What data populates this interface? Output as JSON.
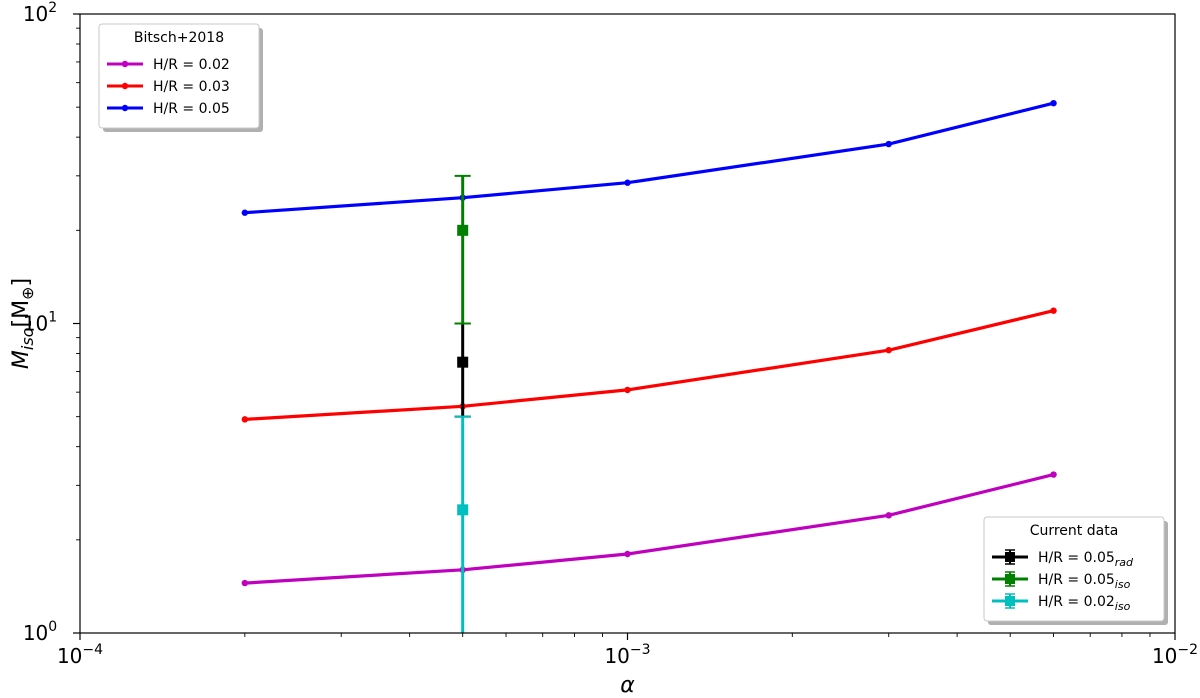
{
  "chart_data": {
    "type": "line",
    "xlabel": "α",
    "ylabel": "M",
    "ylabel_sub": "iso",
    "ylabel_unit": "[M",
    "ylabel_unit_sub": "⊕",
    "ylabel_unit_end": "]",
    "xscale": "log",
    "yscale": "log",
    "xlim": [
      0.0001,
      0.01
    ],
    "ylim": [
      1,
      100
    ],
    "x_ticks": [
      {
        "value": 0.0001,
        "base": "10",
        "exp": "−4"
      },
      {
        "value": 0.001,
        "base": "10",
        "exp": "−3"
      },
      {
        "value": 0.01,
        "base": "10",
        "exp": "−2"
      }
    ],
    "y_ticks": [
      {
        "value": 1,
        "base": "10",
        "exp": "0"
      },
      {
        "value": 10,
        "base": "10",
        "exp": "1"
      },
      {
        "value": 100,
        "base": "10",
        "exp": "2"
      }
    ],
    "grid": false,
    "legend_model": {
      "title": "Bitsch+2018",
      "placement": "top-left",
      "entries": [
        {
          "label": "H/R = 0.02",
          "color": "#bf00bf"
        },
        {
          "label": "H/R = 0.03",
          "color": "#ff0000"
        },
        {
          "label": "H/R = 0.05",
          "color": "#0000ff"
        }
      ]
    },
    "legend_data": {
      "title": "Current data",
      "placement": "bottom-right",
      "entries": [
        {
          "label": "H/R = 0.05",
          "sub": "rad",
          "color": "#000000"
        },
        {
          "label": "H/R = 0.05",
          "sub": "iso",
          "color": "#008000"
        },
        {
          "label": "H/R = 0.02",
          "sub": "iso",
          "color": "#00bfbf"
        }
      ]
    },
    "series": [
      {
        "color": "#bf00bf",
        "x": [
          0.0002,
          0.0005,
          0.001,
          0.003,
          0.006
        ],
        "y": [
          1.45,
          1.6,
          1.8,
          2.4,
          3.25
        ]
      },
      {
        "color": "#ff0000",
        "x": [
          0.0002,
          0.0005,
          0.001,
          0.003,
          0.006
        ],
        "y": [
          4.9,
          5.4,
          6.1,
          8.2,
          11.0
        ]
      },
      {
        "color": "#0000ff",
        "x": [
          0.0002,
          0.0005,
          0.001,
          0.003,
          0.006
        ],
        "y": [
          22.8,
          25.5,
          28.5,
          38.0,
          51.5
        ]
      }
    ],
    "error_points": [
      {
        "color": "#000000",
        "x": 0.0005,
        "y": 7.5,
        "ylow": 5.0,
        "yhigh": 10.0
      },
      {
        "color": "#008000",
        "x": 0.0005,
        "y": 20.0,
        "ylow": 10.0,
        "yhigh": 30.0
      },
      {
        "color": "#00bfbf",
        "x": 0.0005,
        "y": 2.5,
        "ylow": 0.5,
        "yhigh": 5.0
      }
    ]
  }
}
